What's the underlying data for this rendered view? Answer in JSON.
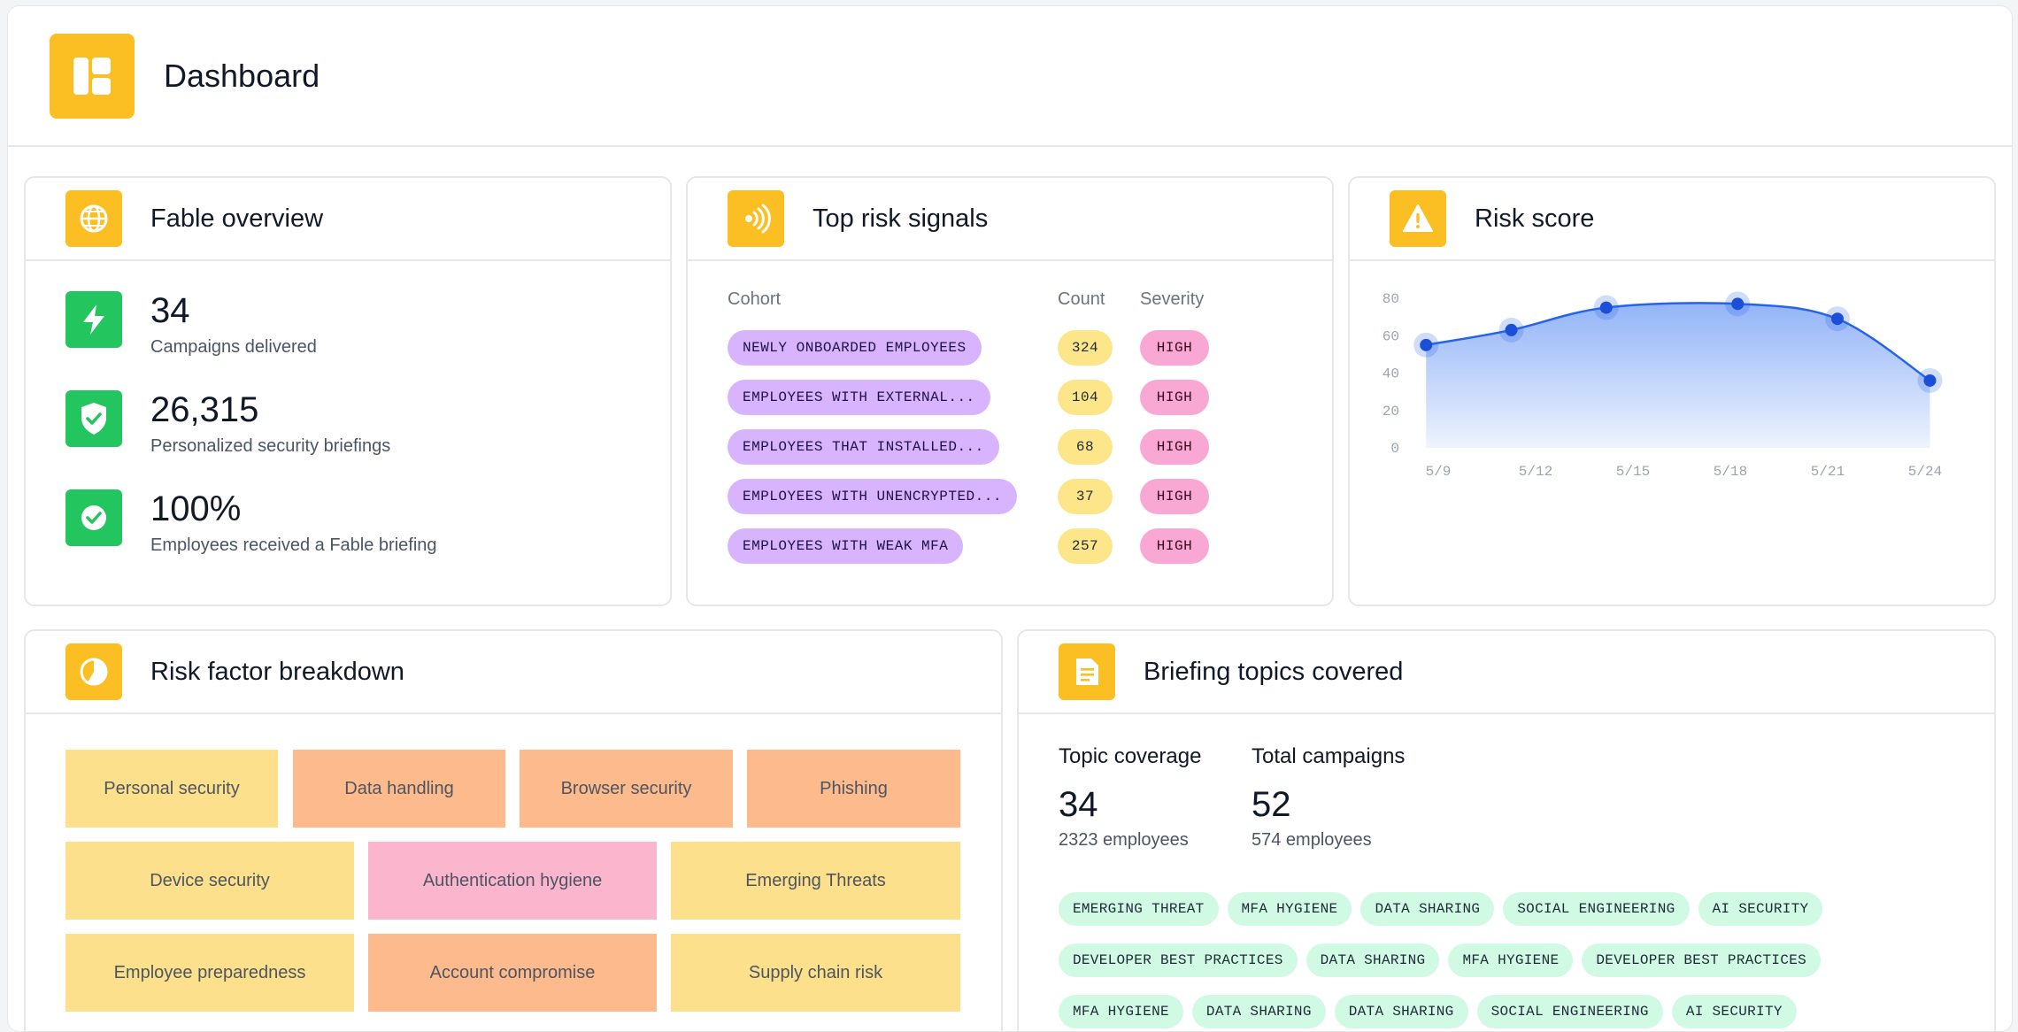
{
  "header": {
    "title": "Dashboard",
    "icon": "dashboard-icon"
  },
  "overview": {
    "title": "Fable overview",
    "icon": "globe-icon",
    "stats": [
      {
        "value": "34",
        "label": "Campaigns delivered",
        "icon": "lightning-icon"
      },
      {
        "value": "26,315",
        "label": "Personalized security briefings",
        "icon": "shield-check-icon"
      },
      {
        "value": "100%",
        "label": "Employees received a Fable briefing",
        "icon": "check-circle-icon"
      }
    ]
  },
  "signals": {
    "title": "Top risk signals",
    "icon": "signal-icon",
    "columns": {
      "cohort": "Cohort",
      "count": "Count",
      "severity": "Severity"
    },
    "rows": [
      {
        "cohort": "NEWLY ONBOARDED EMPLOYEES",
        "count": "324",
        "severity": "HIGH"
      },
      {
        "cohort": "EMPLOYEES WITH EXTERNAL...",
        "count": "104",
        "severity": "HIGH"
      },
      {
        "cohort": "EMPLOYEES THAT INSTALLED...",
        "count": "68",
        "severity": "HIGH"
      },
      {
        "cohort": "EMPLOYEES WITH UNENCRYPTED...",
        "count": "37",
        "severity": "HIGH"
      },
      {
        "cohort": "EMPLOYEES WITH WEAK MFA",
        "count": "257",
        "severity": "HIGH"
      }
    ]
  },
  "risk_score": {
    "title": "Risk score",
    "icon": "warning-icon"
  },
  "chart_data": {
    "type": "area",
    "title": "",
    "xlabel": "",
    "ylabel": "",
    "x": [
      "5/9",
      "5/12",
      "5/15",
      "5/18",
      "5/21",
      "5/24"
    ],
    "x_positions": [
      0,
      2,
      4,
      6,
      8,
      10
    ],
    "points": [
      {
        "x": -0.25,
        "y": 55
      },
      {
        "x": 1.5,
        "y": 63
      },
      {
        "x": 3.45,
        "y": 75
      },
      {
        "x": 6.15,
        "y": 77
      },
      {
        "x": 8.2,
        "y": 69
      },
      {
        "x": 10.1,
        "y": 36
      }
    ],
    "yticks": [
      0,
      20,
      40,
      60,
      80
    ],
    "ylim": [
      0,
      80
    ],
    "grid": false,
    "colors": {
      "line": "#2563eb",
      "point": "#1d4ed8",
      "fill_top": "#93b4f7",
      "fill_bottom": "#eef3fe"
    }
  },
  "breakdown": {
    "title": "Risk factor breakdown",
    "icon": "pie-chart-icon",
    "rows": [
      [
        {
          "label": "Personal security",
          "color": "#fde08b"
        },
        {
          "label": "Data handling",
          "color": "#fdba8c"
        },
        {
          "label": "Browser security",
          "color": "#fdba8c"
        },
        {
          "label": "Phishing",
          "color": "#fdba8c"
        }
      ],
      [
        {
          "label": "Device security",
          "color": "#fde08b"
        },
        {
          "label": "Authentication hygiene",
          "color": "#fbb6ce"
        },
        {
          "label": "Emerging Threats",
          "color": "#fde08b"
        }
      ],
      [
        {
          "label": "Employee preparedness",
          "color": "#fde08b"
        },
        {
          "label": "Account compromise",
          "color": "#fdba8c"
        },
        {
          "label": "Supply chain risk",
          "color": "#fde08b"
        }
      ]
    ]
  },
  "briefing": {
    "title": "Briefing topics covered",
    "icon": "document-icon",
    "metrics": [
      {
        "heading": "Topic coverage",
        "value": "34",
        "sub": "2323 employees"
      },
      {
        "heading": "Total campaigns",
        "value": "52",
        "sub": "574 employees"
      }
    ],
    "tags": [
      "EMERGING THREAT",
      "MFA HYGIENE",
      "DATA SHARING",
      "SOCIAL ENGINEERING",
      "AI SECURITY",
      "DEVELOPER BEST PRACTICES",
      "DATA SHARING",
      "MFA HYGIENE",
      "DEVELOPER BEST PRACTICES",
      "MFA HYGIENE",
      "DATA SHARING",
      "DATA SHARING",
      "SOCIAL ENGINEERING",
      "AI SECURITY"
    ]
  }
}
